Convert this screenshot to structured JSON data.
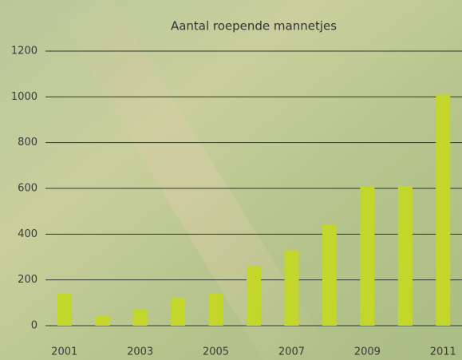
{
  "chart_data": {
    "type": "bar",
    "title": "Aantal roepende mannetjes",
    "categories": [
      "2001",
      null,
      "2003",
      null,
      "2005",
      null,
      "2007",
      null,
      "2009",
      null,
      "2011"
    ],
    "values": [
      140,
      45,
      70,
      120,
      140,
      260,
      330,
      440,
      610,
      610,
      1010
    ],
    "color": "#c3d62c",
    "ylim": [
      0,
      1200
    ],
    "yticks": [
      0,
      200,
      400,
      600,
      800,
      1000,
      1200
    ],
    "grid": true
  }
}
